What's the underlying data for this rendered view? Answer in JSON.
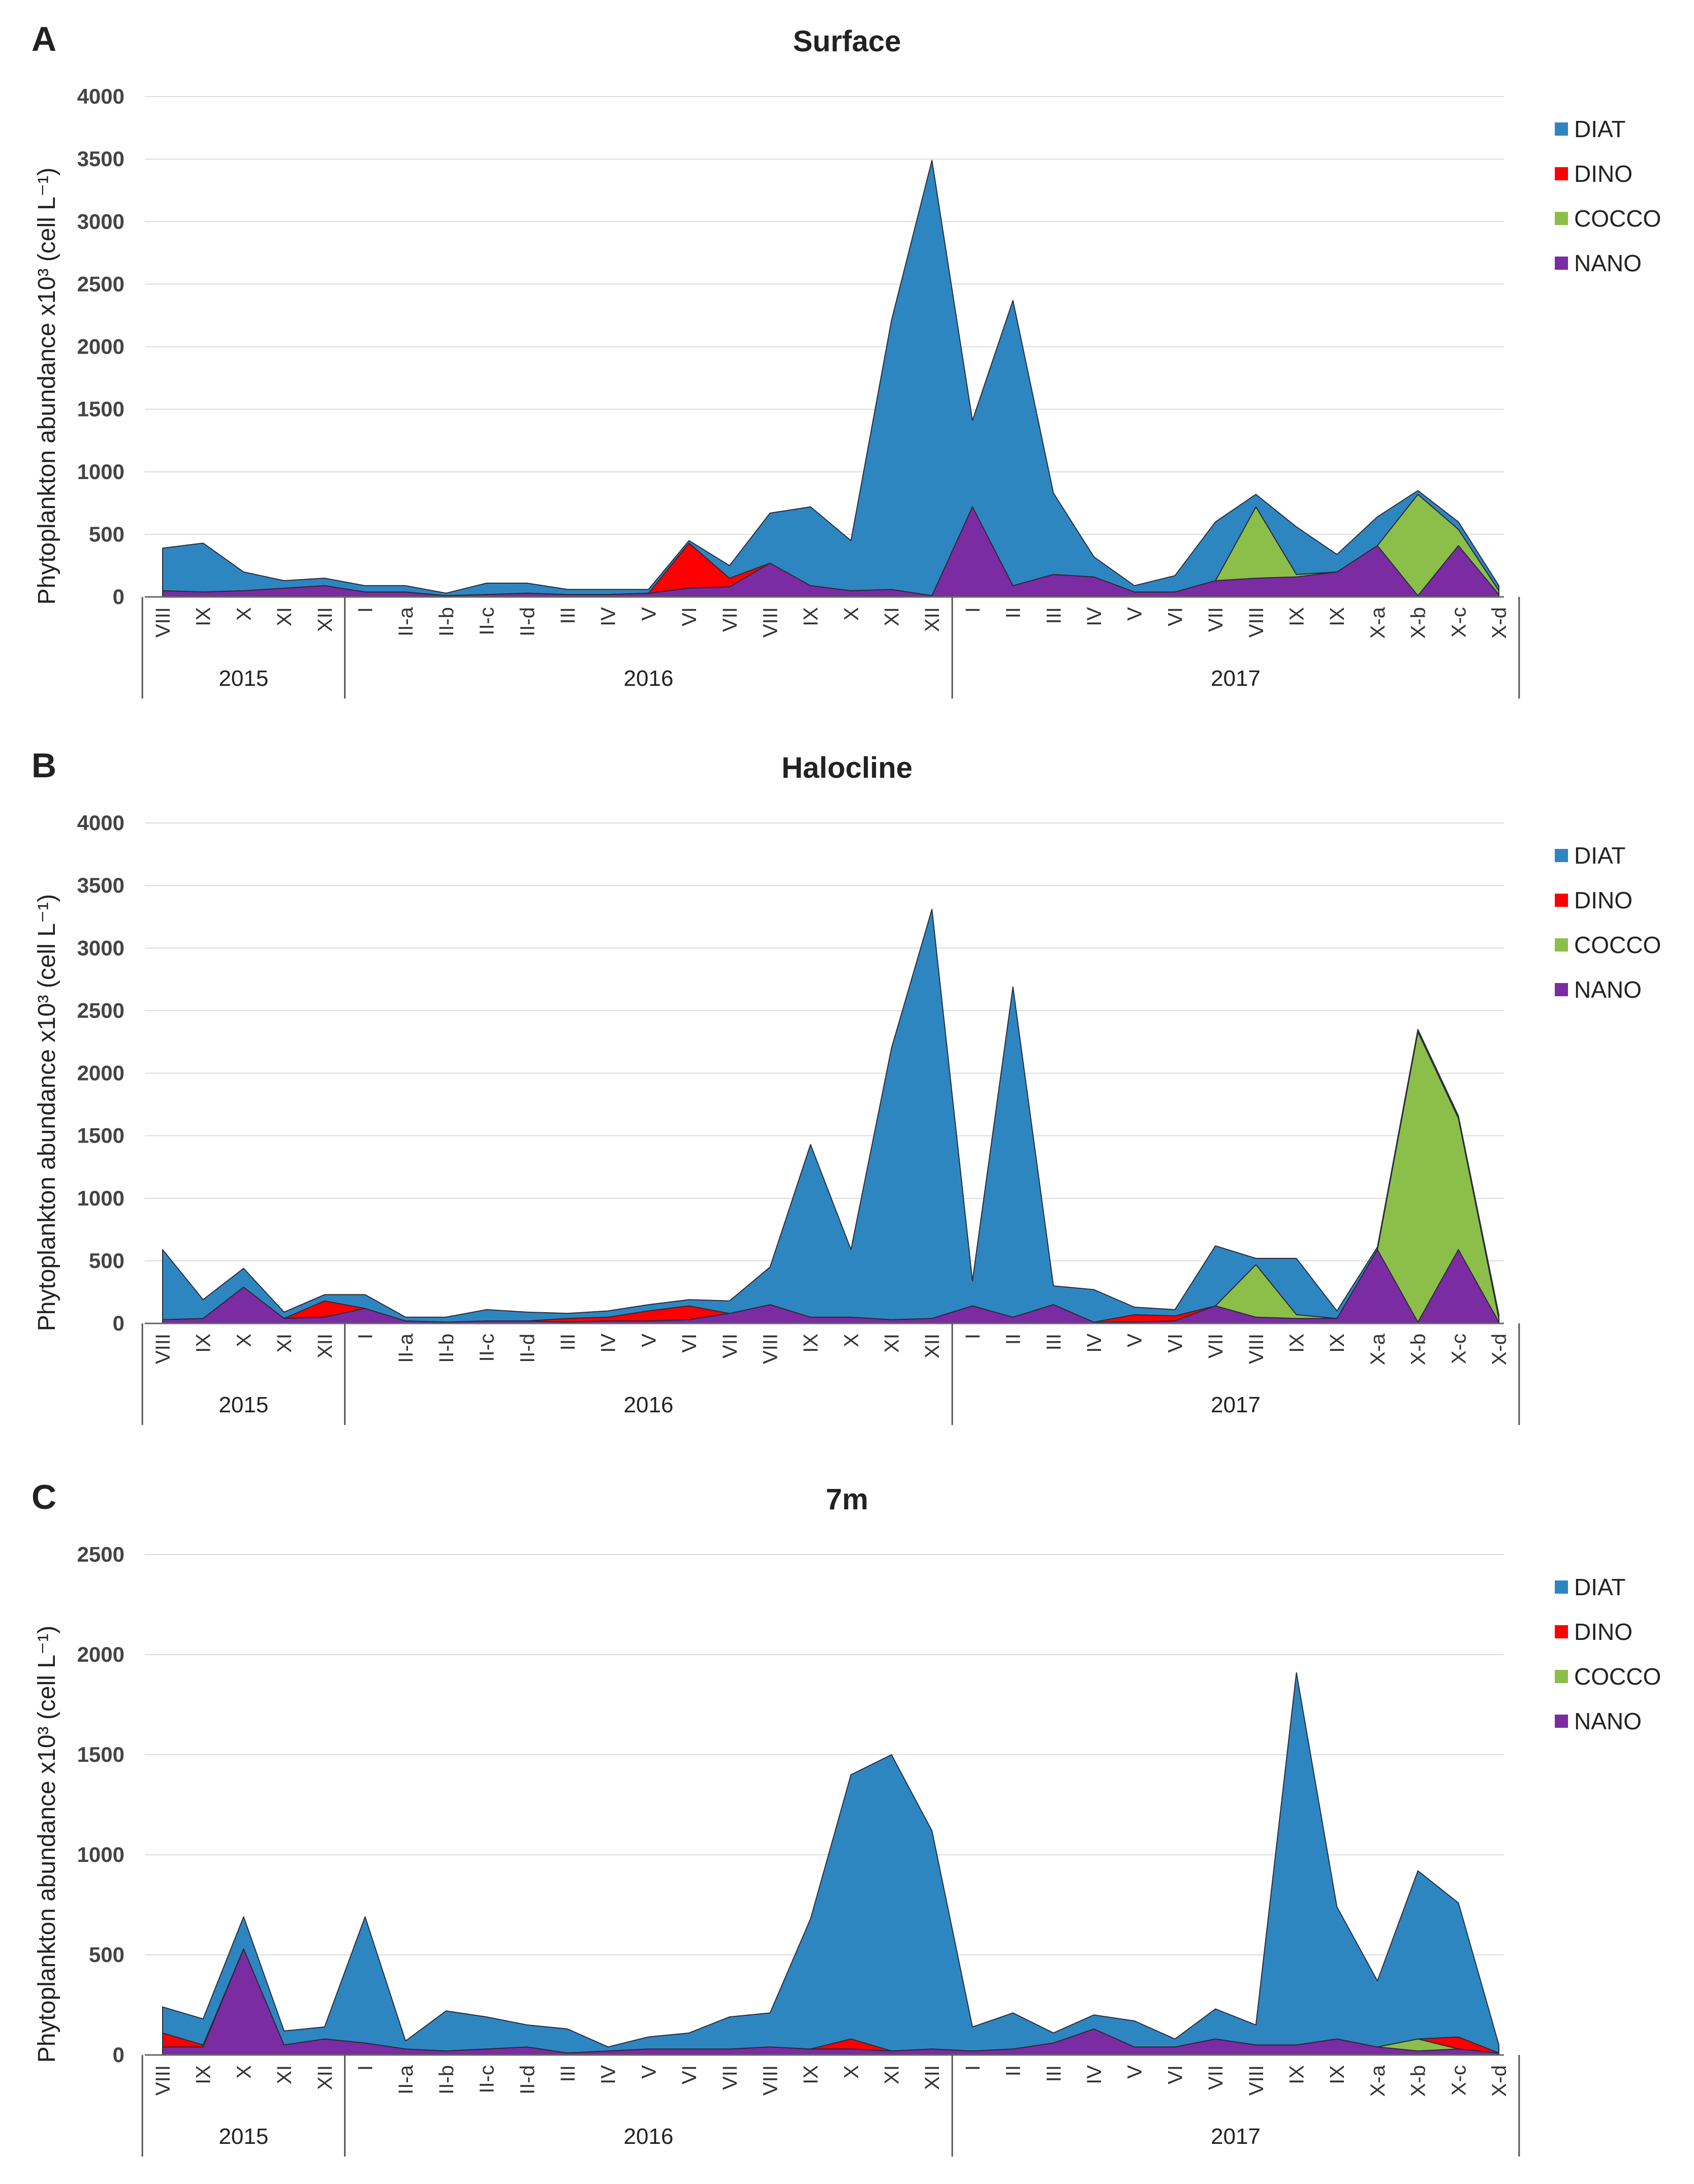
{
  "panels": [
    {
      "letter": "A",
      "title": "Surface",
      "ylabel": "Phytoplankton abundance x10³ (cell L⁻¹)",
      "legend": [
        "DIAT",
        "DINO",
        "COCCO",
        "NANO"
      ]
    },
    {
      "letter": "B",
      "title": "Halocline",
      "ylabel": "Phytoplankton abundance x10³ (cell L⁻¹)",
      "legend": [
        "DIAT",
        "DINO",
        "COCCO",
        "NANO"
      ]
    },
    {
      "letter": "C",
      "title": "7m",
      "ylabel": "Phytoplankton abundance x10³ (cell L⁻¹)",
      "legend": [
        "DIAT",
        "DINO",
        "COCCO",
        "NANO"
      ]
    }
  ],
  "colors": {
    "DIAT": "#2e86c1",
    "DINO": "#ff0000",
    "COCCO": "#8cbf4a",
    "NANO": "#7b2ca2"
  },
  "chart_data": [
    {
      "type": "area",
      "title": "Surface",
      "ylabel": "Phytoplankton abundance x10³ (cell L⁻¹)",
      "categories": [
        "VIII",
        "IX",
        "X",
        "XI",
        "XII",
        "I",
        "II-a",
        "II-b",
        "II-c",
        "II-d",
        "III",
        "IV",
        "V",
        "VI",
        "VII",
        "VIII",
        "IX",
        "X",
        "XI",
        "XII",
        "I",
        "II",
        "III",
        "IV",
        "V",
        "VI",
        "VII",
        "VIII",
        "IX",
        "IX",
        "X-a",
        "X-b",
        "X-c",
        "X-d"
      ],
      "years": [
        {
          "label": "2015",
          "start": 0,
          "end": 4
        },
        {
          "label": "2016",
          "start": 5,
          "end": 19
        },
        {
          "label": "2017",
          "start": 20,
          "end": 33
        }
      ],
      "ylim": [
        0,
        4000
      ],
      "yticks": [
        0,
        500,
        1000,
        1500,
        2000,
        2500,
        3000,
        3500,
        4000
      ],
      "legend_position": "top-right",
      "series": [
        {
          "name": "DIAT",
          "values": [
            340,
            390,
            150,
            60,
            60,
            50,
            50,
            20,
            90,
            80,
            40,
            40,
            30,
            20,
            100,
            400,
            630,
            400,
            2150,
            3480,
            690,
            2280,
            650,
            160,
            50,
            130,
            470,
            100,
            380,
            140,
            230,
            30,
            60,
            40
          ]
        },
        {
          "name": "DINO",
          "values": [
            0,
            0,
            0,
            0,
            0,
            0,
            0,
            0,
            0,
            0,
            0,
            0,
            0,
            360,
            70,
            0,
            0,
            0,
            0,
            0,
            0,
            0,
            0,
            0,
            0,
            0,
            0,
            0,
            0,
            0,
            0,
            0,
            0,
            0
          ]
        },
        {
          "name": "COCCO",
          "values": [
            0,
            0,
            0,
            0,
            0,
            0,
            0,
            0,
            0,
            0,
            0,
            0,
            0,
            0,
            0,
            0,
            0,
            0,
            0,
            0,
            0,
            0,
            0,
            0,
            0,
            0,
            0,
            570,
            20,
            0,
            0,
            810,
            130,
            30
          ]
        },
        {
          "name": "NANO",
          "values": [
            50,
            40,
            50,
            70,
            90,
            40,
            40,
            10,
            20,
            30,
            20,
            20,
            30,
            70,
            80,
            270,
            90,
            50,
            60,
            10,
            720,
            90,
            180,
            160,
            40,
            40,
            130,
            150,
            160,
            200,
            410,
            10,
            410,
            20
          ]
        }
      ]
    },
    {
      "type": "area",
      "title": "Halocline",
      "ylabel": "Phytoplankton abundance x10³ (cell L⁻¹)",
      "categories": [
        "VIII",
        "IX",
        "X",
        "XI",
        "XII",
        "I",
        "II-a",
        "II-b",
        "II-c",
        "II-d",
        "III",
        "IV",
        "V",
        "VI",
        "VII",
        "VIII",
        "IX",
        "X",
        "XI",
        "XII",
        "I",
        "II",
        "III",
        "IV",
        "V",
        "VI",
        "VII",
        "VIII",
        "IX",
        "IX",
        "X-a",
        "X-b",
        "X-c",
        "X-d"
      ],
      "years": [
        {
          "label": "2015",
          "start": 0,
          "end": 4
        },
        {
          "label": "2016",
          "start": 5,
          "end": 19
        },
        {
          "label": "2017",
          "start": 20,
          "end": 33
        }
      ],
      "ylim": [
        0,
        4000
      ],
      "yticks": [
        0,
        500,
        1000,
        1500,
        2000,
        2500,
        3000,
        3500,
        4000
      ],
      "legend_position": "top-right",
      "series": [
        {
          "name": "DIAT",
          "values": [
            560,
            150,
            150,
            50,
            50,
            110,
            30,
            40,
            90,
            70,
            40,
            50,
            50,
            50,
            100,
            300,
            1380,
            540,
            2170,
            3270,
            200,
            2640,
            150,
            260,
            60,
            50,
            480,
            50,
            450,
            60,
            20,
            20,
            20,
            30
          ]
        },
        {
          "name": "DINO",
          "values": [
            0,
            0,
            0,
            0,
            130,
            0,
            0,
            0,
            0,
            0,
            30,
            30,
            80,
            110,
            0,
            0,
            0,
            0,
            0,
            0,
            0,
            0,
            0,
            0,
            60,
            40,
            0,
            0,
            0,
            0,
            0,
            0,
            0,
            0
          ]
        },
        {
          "name": "COCCO",
          "values": [
            0,
            0,
            0,
            0,
            0,
            0,
            0,
            0,
            0,
            0,
            0,
            0,
            0,
            0,
            0,
            0,
            0,
            0,
            0,
            0,
            0,
            0,
            0,
            0,
            0,
            0,
            0,
            420,
            30,
            0,
            0,
            2320,
            1050,
            30
          ]
        },
        {
          "name": "NANO",
          "values": [
            30,
            40,
            290,
            40,
            50,
            120,
            20,
            10,
            20,
            20,
            10,
            20,
            20,
            30,
            80,
            150,
            50,
            50,
            30,
            40,
            140,
            50,
            150,
            10,
            10,
            20,
            140,
            50,
            40,
            40,
            590,
            10,
            590,
            10
          ]
        }
      ]
    },
    {
      "type": "area",
      "title": "7m",
      "ylabel": "Phytoplankton abundance x10³ (cell L⁻¹)",
      "categories": [
        "VIII",
        "IX",
        "X",
        "XI",
        "XII",
        "I",
        "II-a",
        "II-b",
        "II-c",
        "II-d",
        "III",
        "IV",
        "V",
        "VI",
        "VII",
        "VIII",
        "IX",
        "X",
        "XI",
        "XII",
        "I",
        "II",
        "III",
        "IV",
        "V",
        "VI",
        "VII",
        "VIII",
        "IX",
        "IX",
        "X-a",
        "X-b",
        "X-c",
        "X-d"
      ],
      "years": [
        {
          "label": "2015",
          "start": 0,
          "end": 4
        },
        {
          "label": "2016",
          "start": 5,
          "end": 19
        },
        {
          "label": "2017",
          "start": 20,
          "end": 33
        }
      ],
      "ylim": [
        0,
        2500
      ],
      "yticks": [
        0,
        500,
        1000,
        1500,
        2000,
        2500
      ],
      "legend_position": "top-right",
      "series": [
        {
          "name": "DIAT",
          "values": [
            130,
            130,
            160,
            70,
            60,
            630,
            40,
            200,
            160,
            110,
            120,
            20,
            60,
            80,
            160,
            170,
            650,
            1320,
            1480,
            1090,
            120,
            180,
            50,
            70,
            130,
            40,
            150,
            100,
            1860,
            660,
            330,
            840,
            670,
            40
          ]
        },
        {
          "name": "DINO",
          "values": [
            70,
            10,
            0,
            0,
            0,
            0,
            0,
            0,
            0,
            0,
            0,
            0,
            0,
            0,
            0,
            0,
            0,
            50,
            0,
            0,
            0,
            0,
            0,
            0,
            0,
            0,
            0,
            0,
            0,
            0,
            0,
            0,
            60,
            0
          ]
        },
        {
          "name": "COCCO",
          "values": [
            0,
            0,
            0,
            0,
            0,
            0,
            0,
            0,
            0,
            0,
            0,
            0,
            0,
            0,
            0,
            0,
            0,
            0,
            0,
            0,
            0,
            0,
            0,
            0,
            0,
            0,
            0,
            0,
            0,
            0,
            0,
            60,
            0,
            0
          ]
        },
        {
          "name": "NANO",
          "values": [
            40,
            40,
            530,
            50,
            80,
            60,
            30,
            20,
            30,
            40,
            10,
            20,
            30,
            30,
            30,
            40,
            30,
            30,
            20,
            30,
            20,
            30,
            60,
            130,
            40,
            40,
            80,
            50,
            50,
            80,
            40,
            20,
            30,
            10
          ]
        }
      ]
    }
  ]
}
